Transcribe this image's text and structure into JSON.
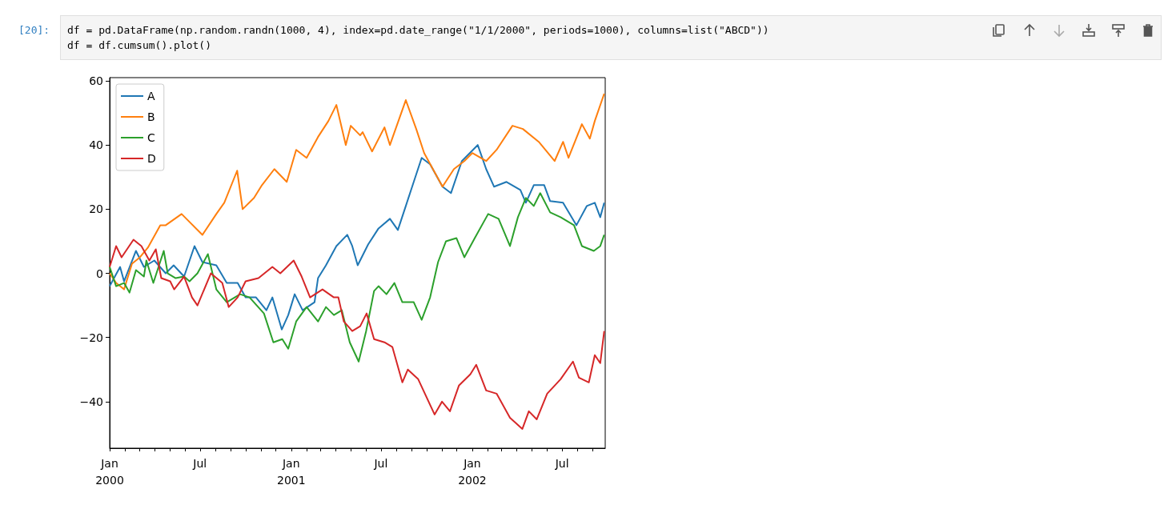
{
  "chart_data": {
    "type": "line",
    "annotations": [
      "[20]:",
      "df = pd.DataFrame(np.random.randn(1000, 4), index=pd.date_range(\"1/1/2000\", periods=1000), columns=list(\"ABCD\"))",
      "df = df.cumsum().plot()"
    ],
    "xlim": [
      "2000-01-01",
      "2002-09-26"
    ],
    "xticks": [
      {
        "value": "2000-01-01",
        "label": "Jan\n2000"
      },
      {
        "value": "2000-02-01",
        "label": null
      },
      {
        "value": "2000-03-01",
        "label": null
      },
      {
        "value": "2000-04-01",
        "label": null
      },
      {
        "value": "2000-05-01",
        "label": null
      },
      {
        "value": "2000-06-01",
        "label": null
      },
      {
        "value": "2000-07-01",
        "label": "Jul"
      },
      {
        "value": "2000-08-01",
        "label": null
      },
      {
        "value": "2000-09-01",
        "label": null
      },
      {
        "value": "2000-10-01",
        "label": null
      },
      {
        "value": "2000-11-01",
        "label": null
      },
      {
        "value": "2000-12-01",
        "label": null
      },
      {
        "value": "2001-01-01",
        "label": "Jan\n2001"
      },
      {
        "value": "2001-02-01",
        "label": null
      },
      {
        "value": "2001-03-01",
        "label": null
      },
      {
        "value": "2001-04-01",
        "label": null
      },
      {
        "value": "2001-05-01",
        "label": null
      },
      {
        "value": "2001-06-01",
        "label": null
      },
      {
        "value": "2001-07-01",
        "label": "Jul"
      },
      {
        "value": "2001-08-01",
        "label": null
      },
      {
        "value": "2001-09-01",
        "label": null
      },
      {
        "value": "2001-10-01",
        "label": null
      },
      {
        "value": "2001-11-01",
        "label": null
      },
      {
        "value": "2001-12-01",
        "label": null
      },
      {
        "value": "2002-01-01",
        "label": "Jan\n2002"
      },
      {
        "value": "2002-02-01",
        "label": null
      },
      {
        "value": "2002-03-01",
        "label": null
      },
      {
        "value": "2002-04-01",
        "label": null
      },
      {
        "value": "2002-05-01",
        "label": null
      },
      {
        "value": "2002-06-01",
        "label": null
      },
      {
        "value": "2002-07-01",
        "label": "Jul"
      },
      {
        "value": "2002-08-01",
        "label": null
      },
      {
        "value": "2002-09-01",
        "label": null
      }
    ],
    "ylim": [
      -54.5,
      61
    ],
    "yticks": [
      {
        "value": -40,
        "label": "−40"
      },
      {
        "value": -20,
        "label": "−20"
      },
      0,
      20,
      40,
      60
    ],
    "grid": false,
    "legend": "top left",
    "marker": "none",
    "series": [
      {
        "name": "A",
        "color": "#1f77b4",
        "x": [
          "2000-01-01",
          "2000-01-22",
          "2000-01-30",
          "2000-02-23",
          "2000-03-10",
          "2000-03-31",
          "2000-04-23",
          "2000-05-09",
          "2000-05-30",
          "2000-06-20",
          "2000-07-06",
          "2000-08-03",
          "2000-08-24",
          "2000-09-15",
          "2000-10-01",
          "2000-10-22",
          "2000-11-12",
          "2000-11-24",
          "2000-12-13",
          "2000-12-26",
          "2001-01-08",
          "2001-01-24",
          "2001-02-17",
          "2001-02-24",
          "2001-03-12",
          "2001-04-02",
          "2001-04-24",
          "2001-05-04",
          "2001-05-15",
          "2001-06-05",
          "2001-06-26",
          "2001-07-19",
          "2001-08-04",
          "2001-08-20",
          "2001-09-05",
          "2001-09-21",
          "2001-10-08",
          "2001-11-02",
          "2001-11-19",
          "2001-12-11",
          "2002-01-12",
          "2002-01-29",
          "2002-02-14",
          "2002-03-11",
          "2002-04-08",
          "2002-04-19",
          "2002-05-05",
          "2002-05-26",
          "2002-06-07",
          "2002-07-03",
          "2002-07-30",
          "2002-08-20",
          "2002-09-05",
          "2002-09-16",
          "2002-09-24"
        ],
        "values": [
          -4,
          2,
          -2.5,
          7,
          2,
          4,
          0,
          2.5,
          -1,
          8.5,
          3.5,
          2.5,
          -3,
          -3,
          -7.5,
          -7.5,
          -11.5,
          -7.5,
          -17.5,
          -13,
          -6.5,
          -11.5,
          -9,
          -1.5,
          2.5,
          8.5,
          12,
          8.5,
          2.5,
          9,
          14,
          17,
          13.5,
          21,
          28.5,
          36,
          34,
          27,
          25,
          35,
          40,
          32.5,
          27,
          28.5,
          26,
          22,
          27.5,
          27.5,
          22.5,
          22,
          15,
          21,
          22,
          17.5,
          22
        ]
      },
      {
        "name": "B",
        "color": "#ff7f0e",
        "x": [
          "2000-01-01",
          "2000-01-14",
          "2000-01-30",
          "2000-02-15",
          "2000-03-02",
          "2000-03-18",
          "2000-04-12",
          "2000-04-23",
          "2000-05-25",
          "2000-07-06",
          "2000-08-03",
          "2000-08-19",
          "2000-09-14",
          "2000-09-25",
          "2000-10-18",
          "2000-11-03",
          "2000-11-28",
          "2000-12-23",
          "2001-01-11",
          "2001-02-01",
          "2001-02-24",
          "2001-03-17",
          "2001-04-02",
          "2001-04-21",
          "2001-05-01",
          "2001-05-20",
          "2001-05-25",
          "2001-06-13",
          "2001-07-08",
          "2001-07-19",
          "2001-08-20",
          "2001-09-10",
          "2001-09-26",
          "2001-11-02",
          "2001-11-25",
          "2001-12-16",
          "2002-01-01",
          "2002-01-29",
          "2002-02-19",
          "2002-03-23",
          "2002-04-13",
          "2002-05-15",
          "2002-06-16",
          "2002-07-03",
          "2002-07-14",
          "2002-08-10",
          "2002-08-26",
          "2002-09-05",
          "2002-09-24"
        ],
        "values": [
          0,
          -3,
          -5,
          3,
          5,
          8,
          15,
          15,
          18.5,
          12,
          18.5,
          22,
          32,
          20,
          23.5,
          27.5,
          32.5,
          28.5,
          38.5,
          36,
          42.5,
          47.5,
          52.5,
          40,
          46,
          43,
          44,
          38,
          45.5,
          40,
          54,
          45,
          37.5,
          27,
          32.5,
          35,
          37.5,
          35,
          38.5,
          46,
          45,
          41,
          35,
          41,
          36,
          46.5,
          42,
          47.5,
          56
        ]
      },
      {
        "name": "C",
        "color": "#2ca02c",
        "x": [
          "2000-01-01",
          "2000-01-14",
          "2000-01-30",
          "2000-02-10",
          "2000-02-23",
          "2000-03-10",
          "2000-03-15",
          "2000-03-29",
          "2000-04-19",
          "2000-04-27",
          "2000-05-13",
          "2000-05-30",
          "2000-06-10",
          "2000-06-26",
          "2000-07-17",
          "2000-08-03",
          "2000-08-24",
          "2000-09-20",
          "2000-10-09",
          "2000-11-07",
          "2000-11-26",
          "2000-12-14",
          "2000-12-26",
          "2001-01-11",
          "2001-02-01",
          "2001-02-24",
          "2001-03-12",
          "2001-03-28",
          "2001-04-13",
          "2001-04-29",
          "2001-05-17",
          "2001-06-01",
          "2001-06-17",
          "2001-06-26",
          "2001-07-12",
          "2001-07-28",
          "2001-08-13",
          "2001-09-05",
          "2001-09-21",
          "2001-10-08",
          "2001-10-24",
          "2001-11-09",
          "2001-11-30",
          "2001-12-16",
          "2002-01-06",
          "2002-02-02",
          "2002-02-23",
          "2002-03-18",
          "2002-04-03",
          "2002-04-19",
          "2002-05-05",
          "2002-05-18",
          "2002-06-07",
          "2002-06-28",
          "2002-07-25",
          "2002-08-10",
          "2002-09-03",
          "2002-09-16",
          "2002-09-24"
        ],
        "values": [
          2,
          -4,
          -3,
          -6,
          1,
          -1,
          4,
          -3,
          7,
          0,
          -1.5,
          -1,
          -2.5,
          0,
          6,
          -5,
          -9,
          -6.5,
          -7.5,
          -12.5,
          -21.5,
          -20.5,
          -23.5,
          -15,
          -10.5,
          -15,
          -10.5,
          -13,
          -11.5,
          -21.5,
          -27.5,
          -18,
          -5.5,
          -4,
          -6.5,
          -3,
          -9,
          -9,
          -14.5,
          -7.5,
          3.5,
          10,
          11,
          5,
          11,
          18.5,
          17,
          8.5,
          17.5,
          23.5,
          21,
          25,
          19,
          17.5,
          15,
          8.5,
          7,
          8.5,
          12
        ]
      },
      {
        "name": "D",
        "color": "#d62728",
        "x": [
          "2000-01-01",
          "2000-01-14",
          "2000-01-25",
          "2000-02-18",
          "2000-03-05",
          "2000-03-21",
          "2000-04-03",
          "2000-04-14",
          "2000-05-02",
          "2000-05-10",
          "2000-05-30",
          "2000-06-15",
          "2000-06-26",
          "2000-07-23",
          "2000-08-15",
          "2000-08-28",
          "2000-09-15",
          "2000-10-01",
          "2000-10-27",
          "2000-11-24",
          "2000-12-10",
          "2001-01-06",
          "2001-01-22",
          "2001-02-08",
          "2001-03-05",
          "2001-03-28",
          "2001-04-06",
          "2001-04-17",
          "2001-05-04",
          "2001-05-20",
          "2001-06-02",
          "2001-06-17",
          "2001-07-08",
          "2001-07-24",
          "2001-08-13",
          "2001-08-24",
          "2001-09-14",
          "2001-10-17",
          "2001-11-01",
          "2001-11-17",
          "2001-12-05",
          "2001-12-28",
          "2002-01-09",
          "2002-01-29",
          "2002-02-19",
          "2002-03-18",
          "2002-04-12",
          "2002-04-25",
          "2002-05-11",
          "2002-06-01",
          "2002-06-28",
          "2002-07-23",
          "2002-08-04",
          "2002-08-24",
          "2002-09-05",
          "2002-09-16",
          "2002-09-24"
        ],
        "values": [
          2,
          8.5,
          5,
          10.5,
          8.5,
          4,
          7.5,
          -1.5,
          -2.5,
          -5,
          -1,
          -7.5,
          -10,
          0,
          -3,
          -10.5,
          -7.5,
          -2.5,
          -1.5,
          2,
          0,
          4,
          -1,
          -7.5,
          -5,
          -7.5,
          -7.5,
          -15,
          -18,
          -16.5,
          -12.5,
          -20.5,
          -21.5,
          -23,
          -34,
          -30,
          -33,
          -44,
          -40,
          -43,
          -35,
          -31.5,
          -28.5,
          -36.5,
          -37.5,
          -45,
          -48.5,
          -43,
          -45.5,
          -37.5,
          -33,
          -27.5,
          -32.5,
          -34,
          -25.5,
          -28,
          -18
        ]
      }
    ]
  }
}
